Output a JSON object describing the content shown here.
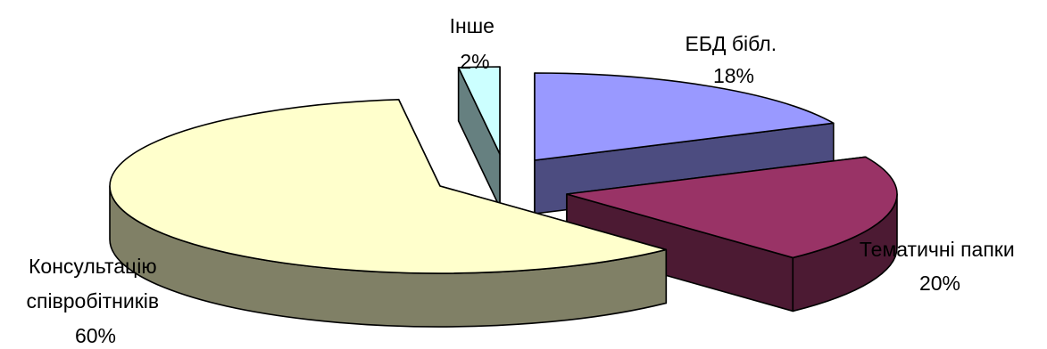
{
  "chart_data": {
    "type": "pie",
    "style": "3d-exploded",
    "slices": [
      {
        "category": "ЕБД бібл.",
        "label_lines": [
          "ЕБД бібл."
        ],
        "value": 18,
        "display": "18%",
        "top_color": "#9999ff",
        "side_color": "#4c4c80"
      },
      {
        "category": "Тематичні папки",
        "label_lines": [
          "Тематичні папки"
        ],
        "value": 20,
        "display": "20%",
        "top_color": "#993366",
        "side_color": "#4c1a33"
      },
      {
        "category": "Консультацію співробітників",
        "label_lines": [
          "Консультацію",
          "співробітників"
        ],
        "value": 60,
        "display": "60%",
        "top_color": "#ffffcc",
        "side_color": "#808066"
      },
      {
        "category": "Інше",
        "label_lines": [
          "Інше"
        ],
        "value": 2,
        "display": "2%",
        "top_color": "#ccffff",
        "side_color": "#668080"
      }
    ],
    "start_angle_deg": 270,
    "direction": "clockwise",
    "legend": "none",
    "data_labels": "category-and-percent"
  }
}
